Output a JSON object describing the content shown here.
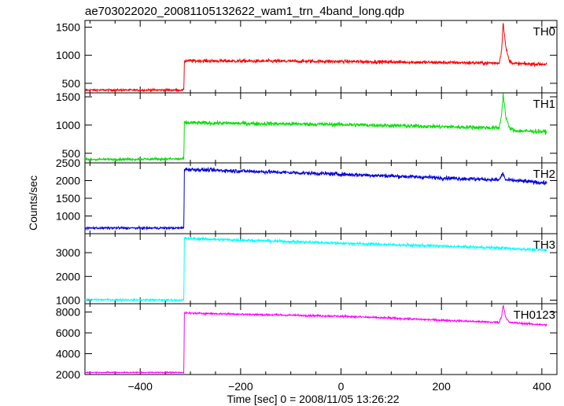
{
  "chart_data": {
    "type": "line",
    "title": "ae703022020_20081105132622_wam1_trn_4band_long.qdp",
    "xlabel": "Time [sec] 0 = 2008/11/05 13:26:22",
    "ylabel": "Counts/sec",
    "xlim": [
      -510,
      430
    ],
    "x_ticks": [
      -400,
      -200,
      0,
      200,
      400
    ],
    "grid": false,
    "step_time": -312,
    "burst_time": 322,
    "panels": [
      {
        "name": "TH0",
        "color": "#ff0000",
        "ylim": [
          330,
          1620
        ],
        "y_ticks": [
          500,
          1000,
          1500
        ],
        "series": [
          {
            "x": -510,
            "y": 380
          },
          {
            "x": -313,
            "y": 380
          },
          {
            "x": -312,
            "y": 900
          },
          {
            "x": 0,
            "y": 890
          },
          {
            "x": 315,
            "y": 860
          },
          {
            "x": 320,
            "y": 1100
          },
          {
            "x": 323,
            "y": 1600
          },
          {
            "x": 328,
            "y": 1150
          },
          {
            "x": 335,
            "y": 900
          },
          {
            "x": 345,
            "y": 850
          },
          {
            "x": 410,
            "y": 840
          }
        ],
        "noise": 30
      },
      {
        "name": "TH1",
        "color": "#00e000",
        "ylim": [
          330,
          1570
        ],
        "y_ticks": [
          500,
          1000,
          1500
        ],
        "series": [
          {
            "x": -510,
            "y": 390
          },
          {
            "x": -313,
            "y": 400
          },
          {
            "x": -312,
            "y": 1040
          },
          {
            "x": 0,
            "y": 1010
          },
          {
            "x": 315,
            "y": 950
          },
          {
            "x": 320,
            "y": 1200
          },
          {
            "x": 323,
            "y": 1560
          },
          {
            "x": 328,
            "y": 1150
          },
          {
            "x": 335,
            "y": 950
          },
          {
            "x": 345,
            "y": 900
          },
          {
            "x": 410,
            "y": 880
          }
        ],
        "noise": 35
      },
      {
        "name": "TH2",
        "color": "#0000dd",
        "ylim": [
          500,
          2500
        ],
        "y_ticks": [
          1000,
          1500,
          2000,
          2500
        ],
        "series": [
          {
            "x": -510,
            "y": 660
          },
          {
            "x": -313,
            "y": 660
          },
          {
            "x": -312,
            "y": 2320
          },
          {
            "x": 0,
            "y": 2180
          },
          {
            "x": 315,
            "y": 2020
          },
          {
            "x": 322,
            "y": 2200
          },
          {
            "x": 328,
            "y": 2020
          },
          {
            "x": 410,
            "y": 1930
          }
        ],
        "noise": 55
      },
      {
        "name": "TH3",
        "color": "#00ffff",
        "ylim": [
          850,
          3800
        ],
        "y_ticks": [
          1000,
          2000,
          3000
        ],
        "series": [
          {
            "x": -510,
            "y": 1020
          },
          {
            "x": -313,
            "y": 1000
          },
          {
            "x": -312,
            "y": 3600
          },
          {
            "x": 0,
            "y": 3400
          },
          {
            "x": 315,
            "y": 3200
          },
          {
            "x": 410,
            "y": 3100
          }
        ],
        "noise": 60
      },
      {
        "name": "TH0123",
        "color": "#ff00ff",
        "ylim": [
          2000,
          8800
        ],
        "y_ticks": [
          2000,
          4000,
          6000,
          8000
        ],
        "series": [
          {
            "x": -510,
            "y": 2200
          },
          {
            "x": -313,
            "y": 2200
          },
          {
            "x": -312,
            "y": 7900
          },
          {
            "x": 0,
            "y": 7600
          },
          {
            "x": 315,
            "y": 7000
          },
          {
            "x": 320,
            "y": 7600
          },
          {
            "x": 323,
            "y": 8700
          },
          {
            "x": 328,
            "y": 7500
          },
          {
            "x": 335,
            "y": 7000
          },
          {
            "x": 410,
            "y": 6750
          }
        ],
        "noise": 90
      }
    ]
  }
}
